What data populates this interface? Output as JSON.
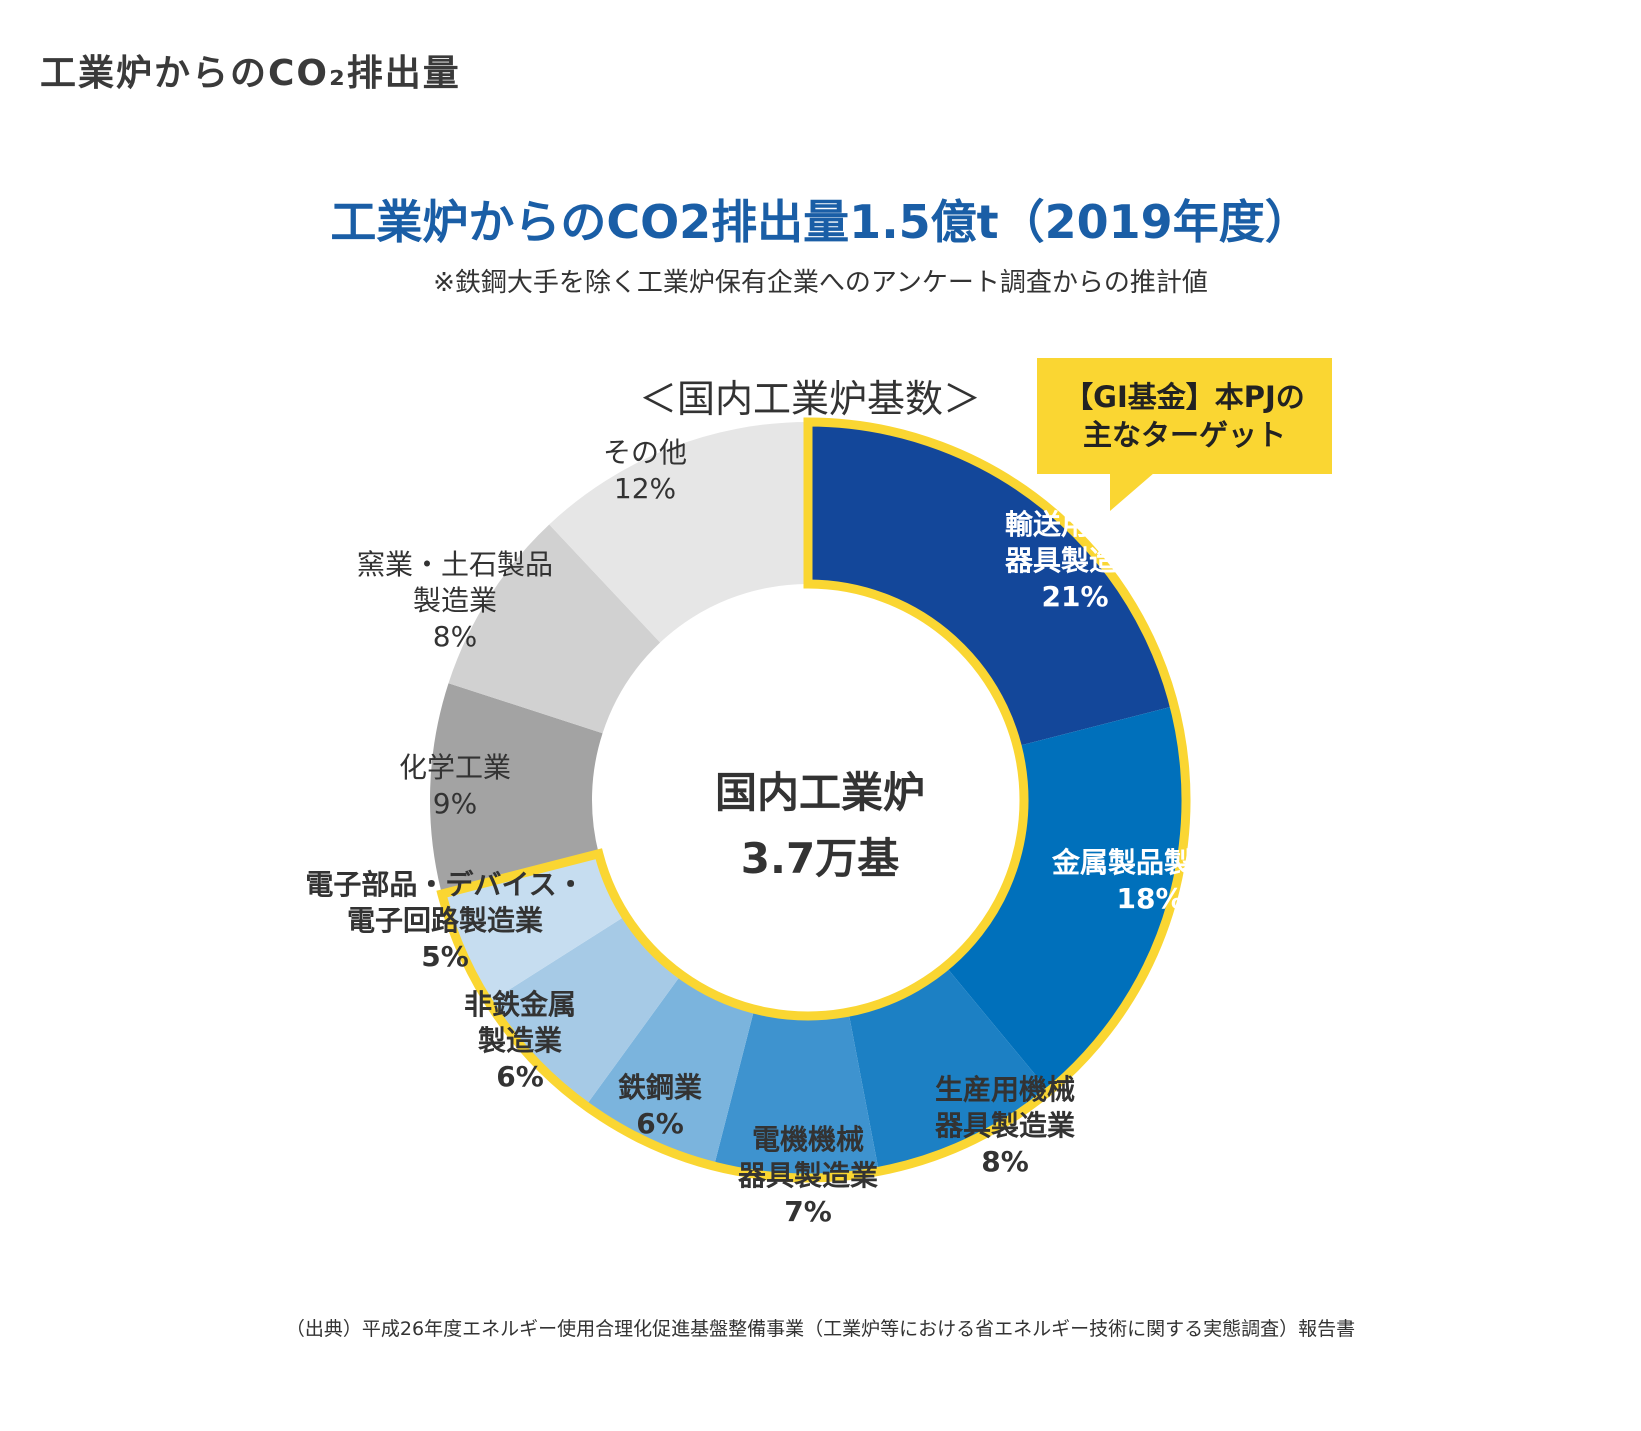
{
  "page_heading": "工業炉からのCO₂排出量",
  "chart_data": {
    "type": "pie",
    "title": "工業炉からのCO2排出量1.5億t（2019年度）",
    "subtitle": "※鉄鋼大手を除く工業炉保有企業へのアンケート調査からの推計値",
    "donut_heading": "＜国内工業炉基数＞",
    "center_label_line1": "国内工業炉",
    "center_label_line2": "3.7万基",
    "callout_line1": "【GI基金】本PJの",
    "callout_line2": "主なターゲット",
    "source": "（出典）平成26年度エネルギー使用合理化促進基盤整備事業（工業炉等における省エネルギー技術に関する実態調査）報告書",
    "highlight_color": "#fad632",
    "slices": [
      {
        "label_lines": [
          "輸送用機械",
          "器具製造業",
          "21%"
        ],
        "value": 21,
        "color": "#13479a",
        "text_color": "#ffffff",
        "target": true
      },
      {
        "label_lines": [
          "金属製品製造業",
          "18%"
        ],
        "value": 18,
        "color": "#0070bb",
        "text_color": "#ffffff",
        "target": true
      },
      {
        "label_lines": [
          "生産用機械",
          "器具製造業",
          "8%"
        ],
        "value": 8,
        "color": "#1c80c4",
        "text_color": "#333333",
        "target": true
      },
      {
        "label_lines": [
          "電機機械",
          "器具製造業",
          "7%"
        ],
        "value": 7,
        "color": "#3e93cf",
        "text_color": "#333333",
        "target": true
      },
      {
        "label_lines": [
          "鉄鋼業",
          "6%"
        ],
        "value": 6,
        "color": "#7bb4dd",
        "text_color": "#333333",
        "target": true
      },
      {
        "label_lines": [
          "非鉄金属",
          "製造業",
          "6%"
        ],
        "value": 6,
        "color": "#a6cae6",
        "text_color": "#333333",
        "target": true
      },
      {
        "label_lines": [
          "電子部品・デバイス・",
          "電子回路製造業",
          "5%"
        ],
        "value": 5,
        "color": "#c6ddf0",
        "text_color": "#333333",
        "target": true
      },
      {
        "label_lines": [
          "化学工業",
          "9%"
        ],
        "value": 9,
        "color": "#a3a3a3",
        "text_color": "#333333",
        "target": false
      },
      {
        "label_lines": [
          "窯業・土石製品",
          "製造業",
          "8%"
        ],
        "value": 8,
        "color": "#d1d1d1",
        "text_color": "#333333",
        "target": false
      },
      {
        "label_lines": [
          "その他",
          "12%"
        ],
        "value": 12,
        "color": "#e6e6e6",
        "text_color": "#333333",
        "target": false
      }
    ]
  }
}
